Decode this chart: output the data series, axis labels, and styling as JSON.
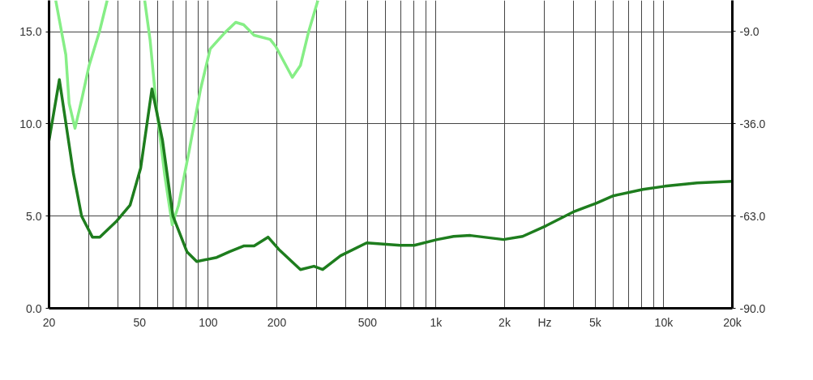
{
  "chart_data": {
    "type": "line",
    "xlim": [
      20,
      20000
    ],
    "ylim": [
      0,
      16.7
    ],
    "y2lim": [
      -90,
      0
    ],
    "log": "x",
    "grid": true,
    "line_style": "solid",
    "marker": "none",
    "xticks": [
      20,
      {
        "value": 30,
        "label": null
      },
      {
        "value": 40,
        "label": null
      },
      50,
      {
        "value": 60,
        "label": null
      },
      {
        "value": 70,
        "label": null
      },
      {
        "value": 80,
        "label": null
      },
      {
        "value": 90,
        "label": null
      },
      100,
      200,
      {
        "value": 300,
        "label": null
      },
      {
        "value": 400,
        "label": null
      },
      500,
      {
        "value": 600,
        "label": null
      },
      {
        "value": 700,
        "label": null
      },
      {
        "value": 800,
        "label": null
      },
      {
        "value": 900,
        "label": null
      },
      {
        "value": 1000,
        "label": "1k"
      },
      {
        "value": 2000,
        "label": "2k"
      },
      {
        "value": 3000,
        "label": "Hz"
      },
      {
        "value": 4000,
        "label": null
      },
      {
        "value": 5000,
        "label": "5k"
      },
      {
        "value": 6000,
        "label": null
      },
      {
        "value": 7000,
        "label": null
      },
      {
        "value": 8000,
        "label": null
      },
      {
        "value": 9000,
        "label": null
      },
      {
        "value": 10000,
        "label": "10k"
      },
      {
        "value": 20000,
        "label": "20k"
      }
    ],
    "yticks": [
      {
        "value": 0,
        "label": "0.0"
      },
      {
        "value": 5,
        "label": "5.0"
      },
      {
        "value": 10,
        "label": "10.0"
      },
      {
        "value": 15,
        "label": "15.0"
      }
    ],
    "y2ticks": [
      {
        "value": -90,
        "label": "-90.0"
      },
      {
        "value": -63,
        "label": "-63.0"
      },
      {
        "value": -36,
        "label": "-36.0"
      },
      {
        "value": -9,
        "label": "-9.0"
      }
    ],
    "series": [
      {
        "color": "#86ee86",
        "axis": "y2",
        "x": [
          21.4,
          23.7,
          24.5,
          26,
          27.8,
          30,
          33.4,
          36,
          44,
          52.6,
          55.6,
          59.3,
          64.5,
          69.5,
          74,
          82.8,
          92.5,
          102,
          118,
          132,
          143,
          159,
          187,
          198,
          234,
          254,
          275,
          303
        ],
        "values": [
          0,
          -15.9,
          -30.1,
          -37.4,
          -29.1,
          -19,
          -8.8,
          0,
          null,
          0,
          -11.8,
          -31.5,
          -51.4,
          -65.6,
          -60,
          -43.3,
          -26,
          -14.2,
          -9.5,
          -6.4,
          -7.1,
          -10.2,
          -11.4,
          -13.5,
          -22.5,
          -19,
          -9.5,
          0
        ]
      },
      {
        "color": "#1e7d1e",
        "x": [
          20,
          22.2,
          25.6,
          27.8,
          31,
          33.4,
          39.4,
          45.4,
          50.5,
          56.6,
          63,
          70,
          80.6,
          89,
          109,
          124,
          143,
          159,
          183,
          204,
          254,
          291,
          318,
          381,
          496,
          695,
          803,
          1013,
          1195,
          1414,
          1978,
          2400,
          3035,
          4060,
          5050,
          6000,
          8100,
          10100,
          14000,
          20000
        ],
        "values": [
          9.1,
          12.4,
          7.3,
          5.0,
          3.86,
          3.86,
          4.7,
          5.6,
          7.6,
          11.9,
          9.1,
          5.0,
          3.07,
          2.54,
          2.76,
          3.07,
          3.38,
          3.38,
          3.86,
          3.2,
          2.1,
          2.28,
          2.1,
          2.85,
          3.55,
          3.42,
          3.42,
          3.73,
          3.9,
          3.95,
          3.73,
          3.9,
          4.47,
          5.26,
          5.7,
          6.1,
          6.45,
          6.62,
          6.8,
          6.89
        ]
      }
    ]
  }
}
